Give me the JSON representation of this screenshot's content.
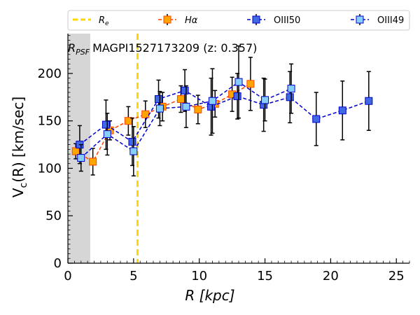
{
  "chart_data": {
    "type": "line",
    "title": "",
    "annotation_psf": "R",
    "annotation_psf_sub": "PSF",
    "annotation_title": "MAGPI1527173209 (z: 0.357)",
    "xlabel": "R [kpc]",
    "ylabel": "V",
    "ylabel_sub": "c",
    "ylabel_rest": "(R) [km/sec]",
    "xlim": [
      0,
      26
    ],
    "ylim": [
      0,
      242
    ],
    "xticks": [
      0,
      5,
      10,
      15,
      20,
      25
    ],
    "yticks": [
      0,
      50,
      100,
      150,
      200
    ],
    "psf_band": [
      0,
      1.7
    ],
    "re_line": 5.3,
    "legend": {
      "placement": "top",
      "entries": [
        {
          "key": "re",
          "label": "R",
          "label_sub": "e"
        },
        {
          "key": "ha",
          "label": "Hα"
        },
        {
          "key": "o50",
          "label": "OIII50"
        },
        {
          "key": "o49",
          "label": "OIII49"
        }
      ]
    },
    "series": [
      {
        "name": "Hα",
        "line_color": "#ff4500",
        "marker_fill": "#ffa500",
        "marker_edge": "#ff4500",
        "x": [
          0.6,
          1.9,
          3.2,
          4.6,
          5.9,
          7.2,
          8.6,
          9.9,
          11.2,
          12.5,
          13.9
        ],
        "y": [
          118,
          107,
          140,
          150,
          157,
          165,
          173,
          162,
          168,
          178,
          189
        ],
        "err": [
          8,
          14,
          10,
          15,
          14,
          15,
          14,
          15,
          14,
          18,
          28
        ]
      },
      {
        "name": "OIII50",
        "line_color": "#0000cd",
        "marker_fill": "#4169e1",
        "marker_edge": "#0000cd",
        "x": [
          0.9,
          2.9,
          4.9,
          6.9,
          8.9,
          10.9,
          12.9,
          14.9,
          16.9,
          18.9,
          20.9,
          22.9
        ],
        "y": [
          125,
          146,
          128,
          173,
          182,
          165,
          176,
          167,
          175,
          152,
          161,
          171
        ],
        "err": [
          20,
          26,
          25,
          20,
          22,
          30,
          24,
          28,
          27,
          28,
          31,
          31
        ]
      },
      {
        "name": "OIII49",
        "line_color": "#0000cd",
        "marker_fill": "#87cefa",
        "marker_edge": "#0000cd",
        "x": [
          1.0,
          3.0,
          5.0,
          7.0,
          9.0,
          11.0,
          13.0,
          15.0,
          17.0
        ],
        "y": [
          111,
          136,
          118,
          163,
          165,
          171,
          191,
          172,
          184
        ],
        "err": [
          14,
          22,
          26,
          18,
          22,
          34,
          38,
          22,
          26
        ]
      }
    ]
  }
}
